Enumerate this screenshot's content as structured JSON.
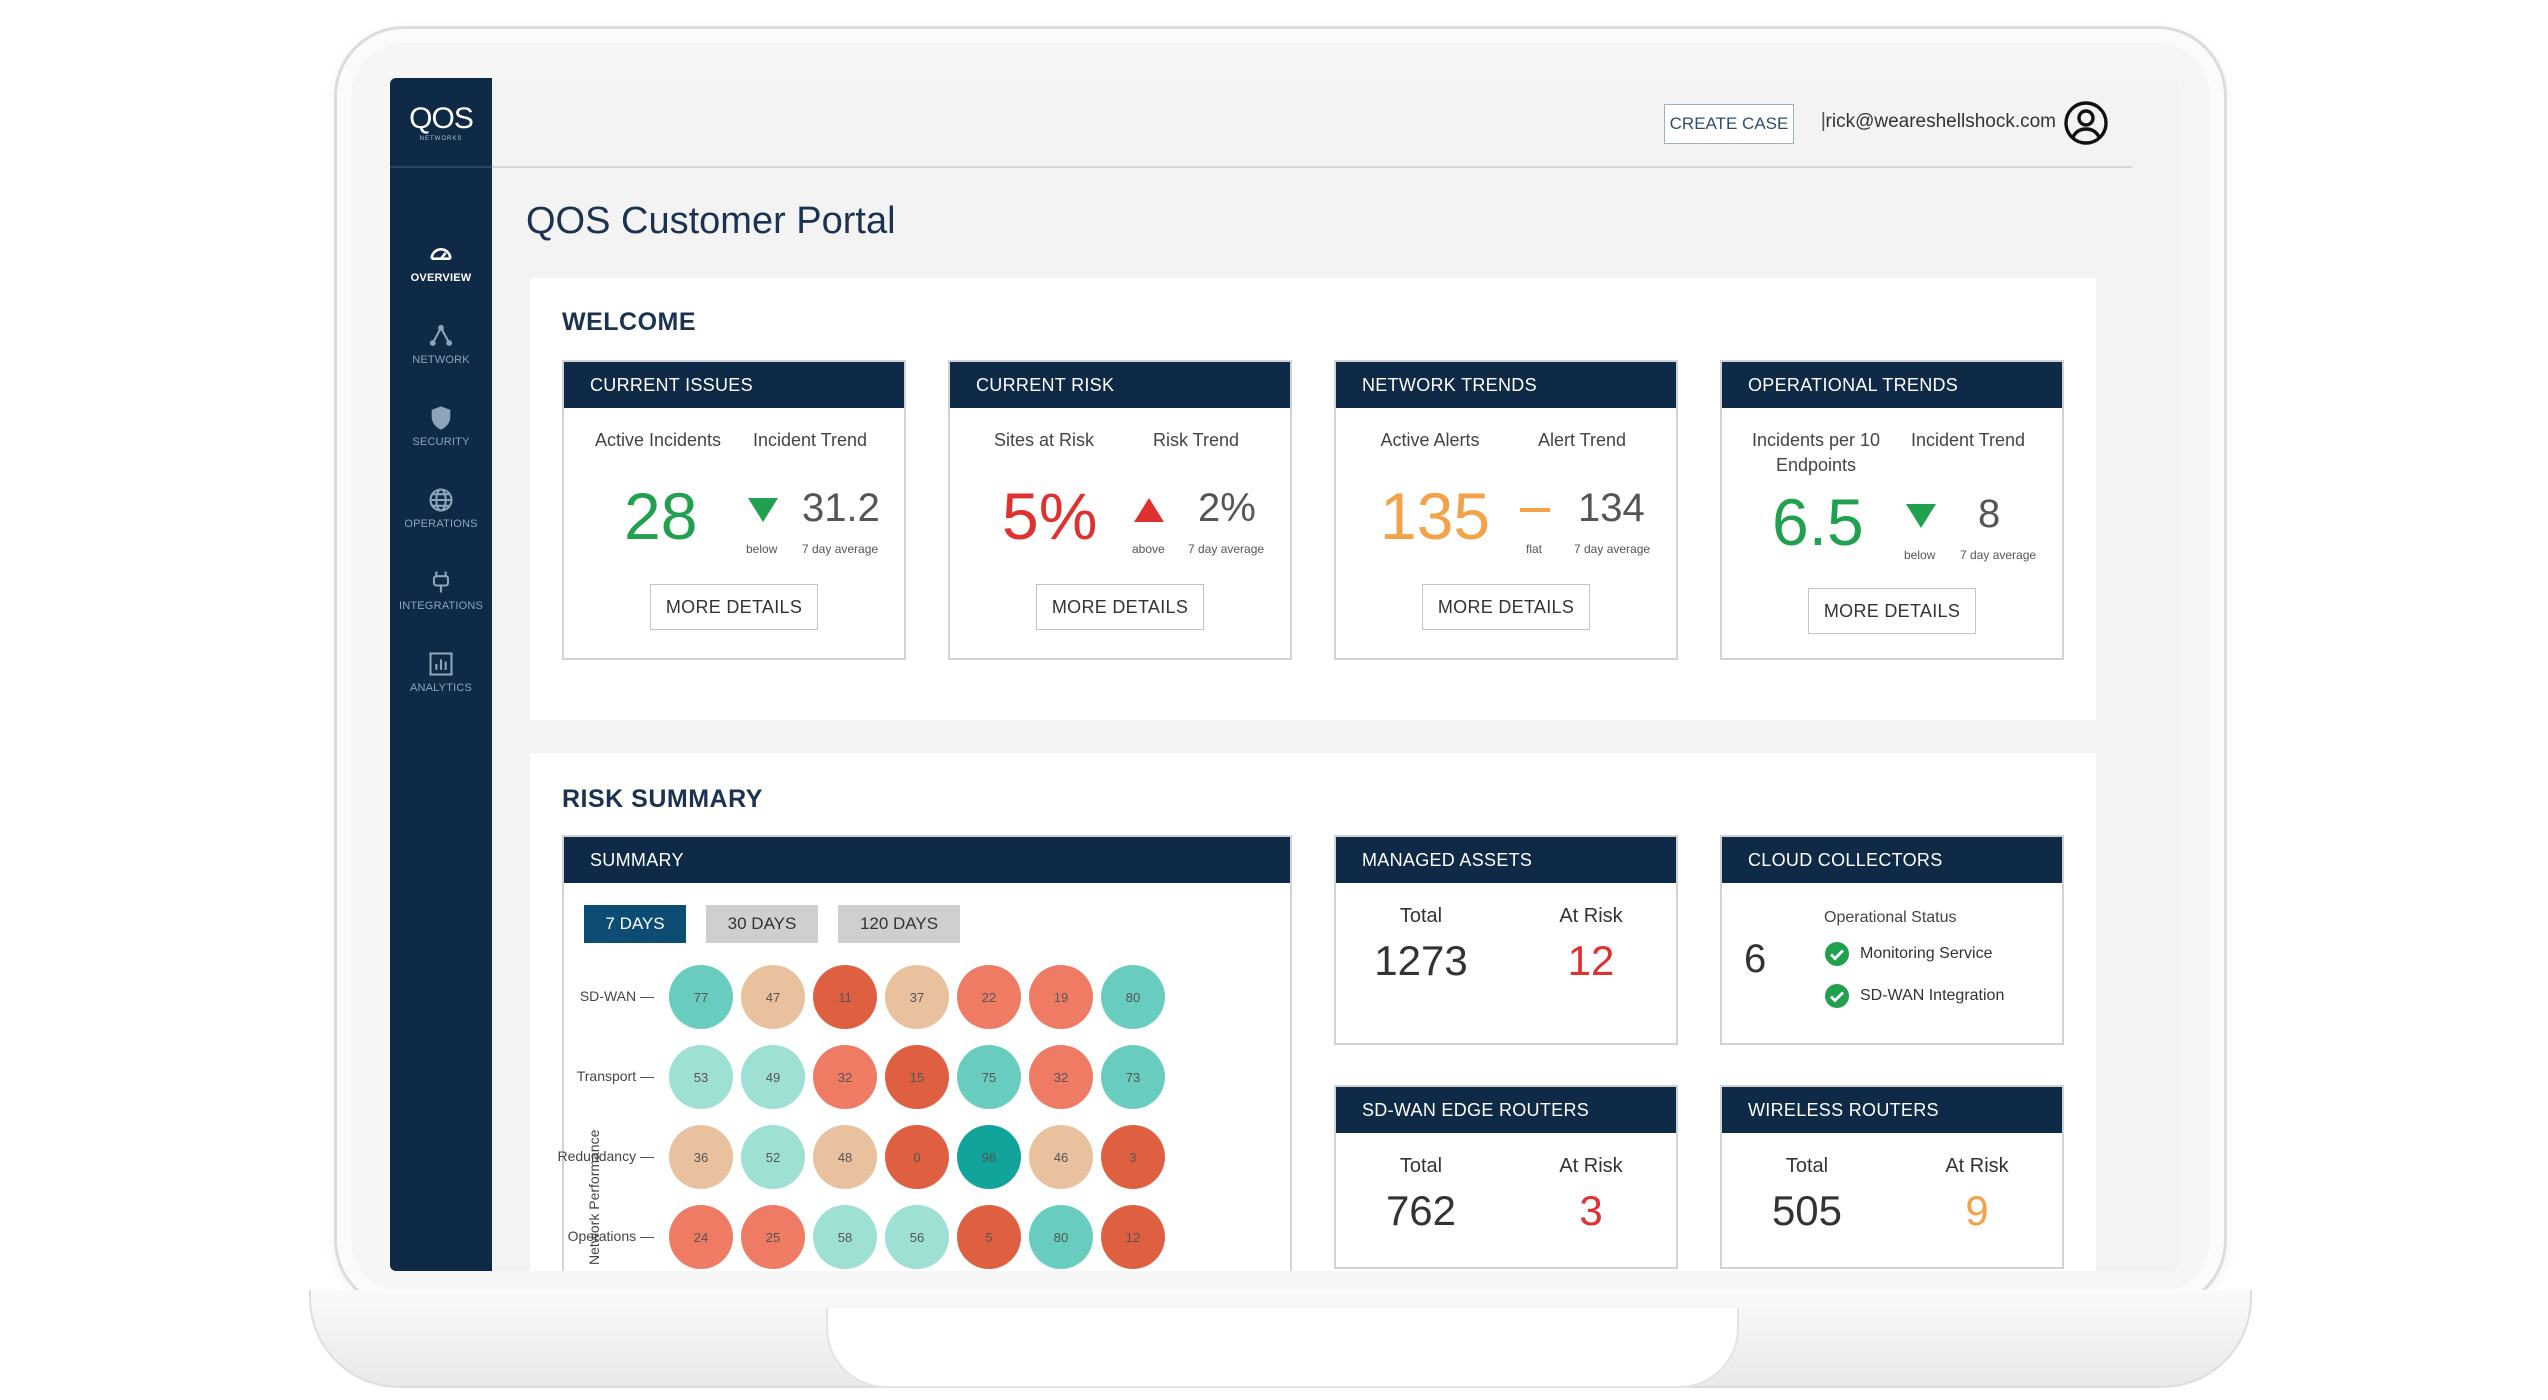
{
  "brand": {
    "logo_main": "QOS",
    "logo_sub": "NETWORKS"
  },
  "sidebar": {
    "items": [
      {
        "label": "OVERVIEW",
        "icon": "gauge-icon",
        "active": true
      },
      {
        "label": "NETWORK",
        "icon": "network-icon",
        "active": false
      },
      {
        "label": "SECURITY",
        "icon": "shield-icon",
        "active": false
      },
      {
        "label": "OPERATIONS",
        "icon": "globe-icon",
        "active": false
      },
      {
        "label": "INTEGRATIONS",
        "icon": "plug-icon",
        "active": false
      },
      {
        "label": "ANALYTICS",
        "icon": "bar-chart-icon",
        "active": false
      }
    ]
  },
  "header": {
    "create_case_label": "CREATE CASE",
    "separator": "|",
    "user_email": "rick@weareshellshock.com"
  },
  "page_title": "QOS Customer Portal",
  "welcome": {
    "title": "WELCOME",
    "more_label": "MORE DETAILS",
    "cards": [
      {
        "title": "CURRENT ISSUES",
        "label_left": "Active Incidents",
        "label_right": "Incident Trend",
        "value": "28",
        "value_color": "#21a04f",
        "trend": "down",
        "trend_color": "#21a04f",
        "trend_word": "below",
        "trend_value": "31.2",
        "avg_label": "7 day average"
      },
      {
        "title": "CURRENT RISK",
        "label_left": "Sites at Risk",
        "label_right": "Risk Trend",
        "value": "5%",
        "value_color": "#e03131",
        "trend": "up",
        "trend_color": "#e03131",
        "trend_word": "above",
        "trend_value": "2%",
        "avg_label": "7 day average"
      },
      {
        "title": "NETWORK TRENDS",
        "label_left": "Active Alerts",
        "label_right": "Alert Trend",
        "value": "135",
        "value_color": "#f4a24a",
        "trend": "flat",
        "trend_color": "#f4a24a",
        "trend_word": "flat",
        "trend_value": "134",
        "avg_label": "7 day average"
      },
      {
        "title": "OPERATIONAL TRENDS",
        "label_left": "Incidents per 10 Endpoints",
        "label_right": "Incident Trend",
        "value": "6.5",
        "value_color": "#21a04f",
        "trend": "down",
        "trend_color": "#21a04f",
        "trend_word": "below",
        "trend_value": "8",
        "avg_label": "7 day average"
      }
    ]
  },
  "risk_summary": {
    "title": "RISK SUMMARY",
    "summary": {
      "title": "SUMMARY",
      "ranges": [
        {
          "label": "7 DAYS",
          "active": true
        },
        {
          "label": "30 DAYS",
          "active": false
        },
        {
          "label": "120 DAYS",
          "active": false
        }
      ],
      "y_axis_label": "Network Performance",
      "rows": [
        {
          "label": "SD-WAN",
          "values": [
            77,
            47,
            11,
            37,
            22,
            19,
            80
          ]
        },
        {
          "label": "Transport",
          "values": [
            53,
            49,
            32,
            15,
            75,
            32,
            73
          ]
        },
        {
          "label": "Redundancy",
          "values": [
            36,
            52,
            48,
            0,
            98,
            46,
            3
          ]
        },
        {
          "label": "Operations",
          "values": [
            24,
            25,
            58,
            56,
            5,
            80,
            12
          ]
        }
      ]
    },
    "managed_assets": {
      "title": "MANAGED ASSETS",
      "total_label": "Total",
      "risk_label": "At Risk",
      "total": "1273",
      "at_risk": "12",
      "risk_color": "#e03131"
    },
    "cloud_collectors": {
      "title": "CLOUD COLLECTORS",
      "count": "6",
      "status_label": "Operational Status",
      "items": [
        "Monitoring Service",
        "SD-WAN Integration"
      ]
    },
    "sdwan_routers": {
      "title": "SD-WAN EDGE ROUTERS",
      "total_label": "Total",
      "risk_label": "At Risk",
      "total": "762",
      "at_risk": "3",
      "risk_color": "#e03131"
    },
    "wireless_routers": {
      "title": "WIRELESS ROUTERS",
      "total_label": "Total",
      "risk_label": "At Risk",
      "total": "505",
      "at_risk": "9",
      "risk_color": "#f4a24a"
    }
  }
}
